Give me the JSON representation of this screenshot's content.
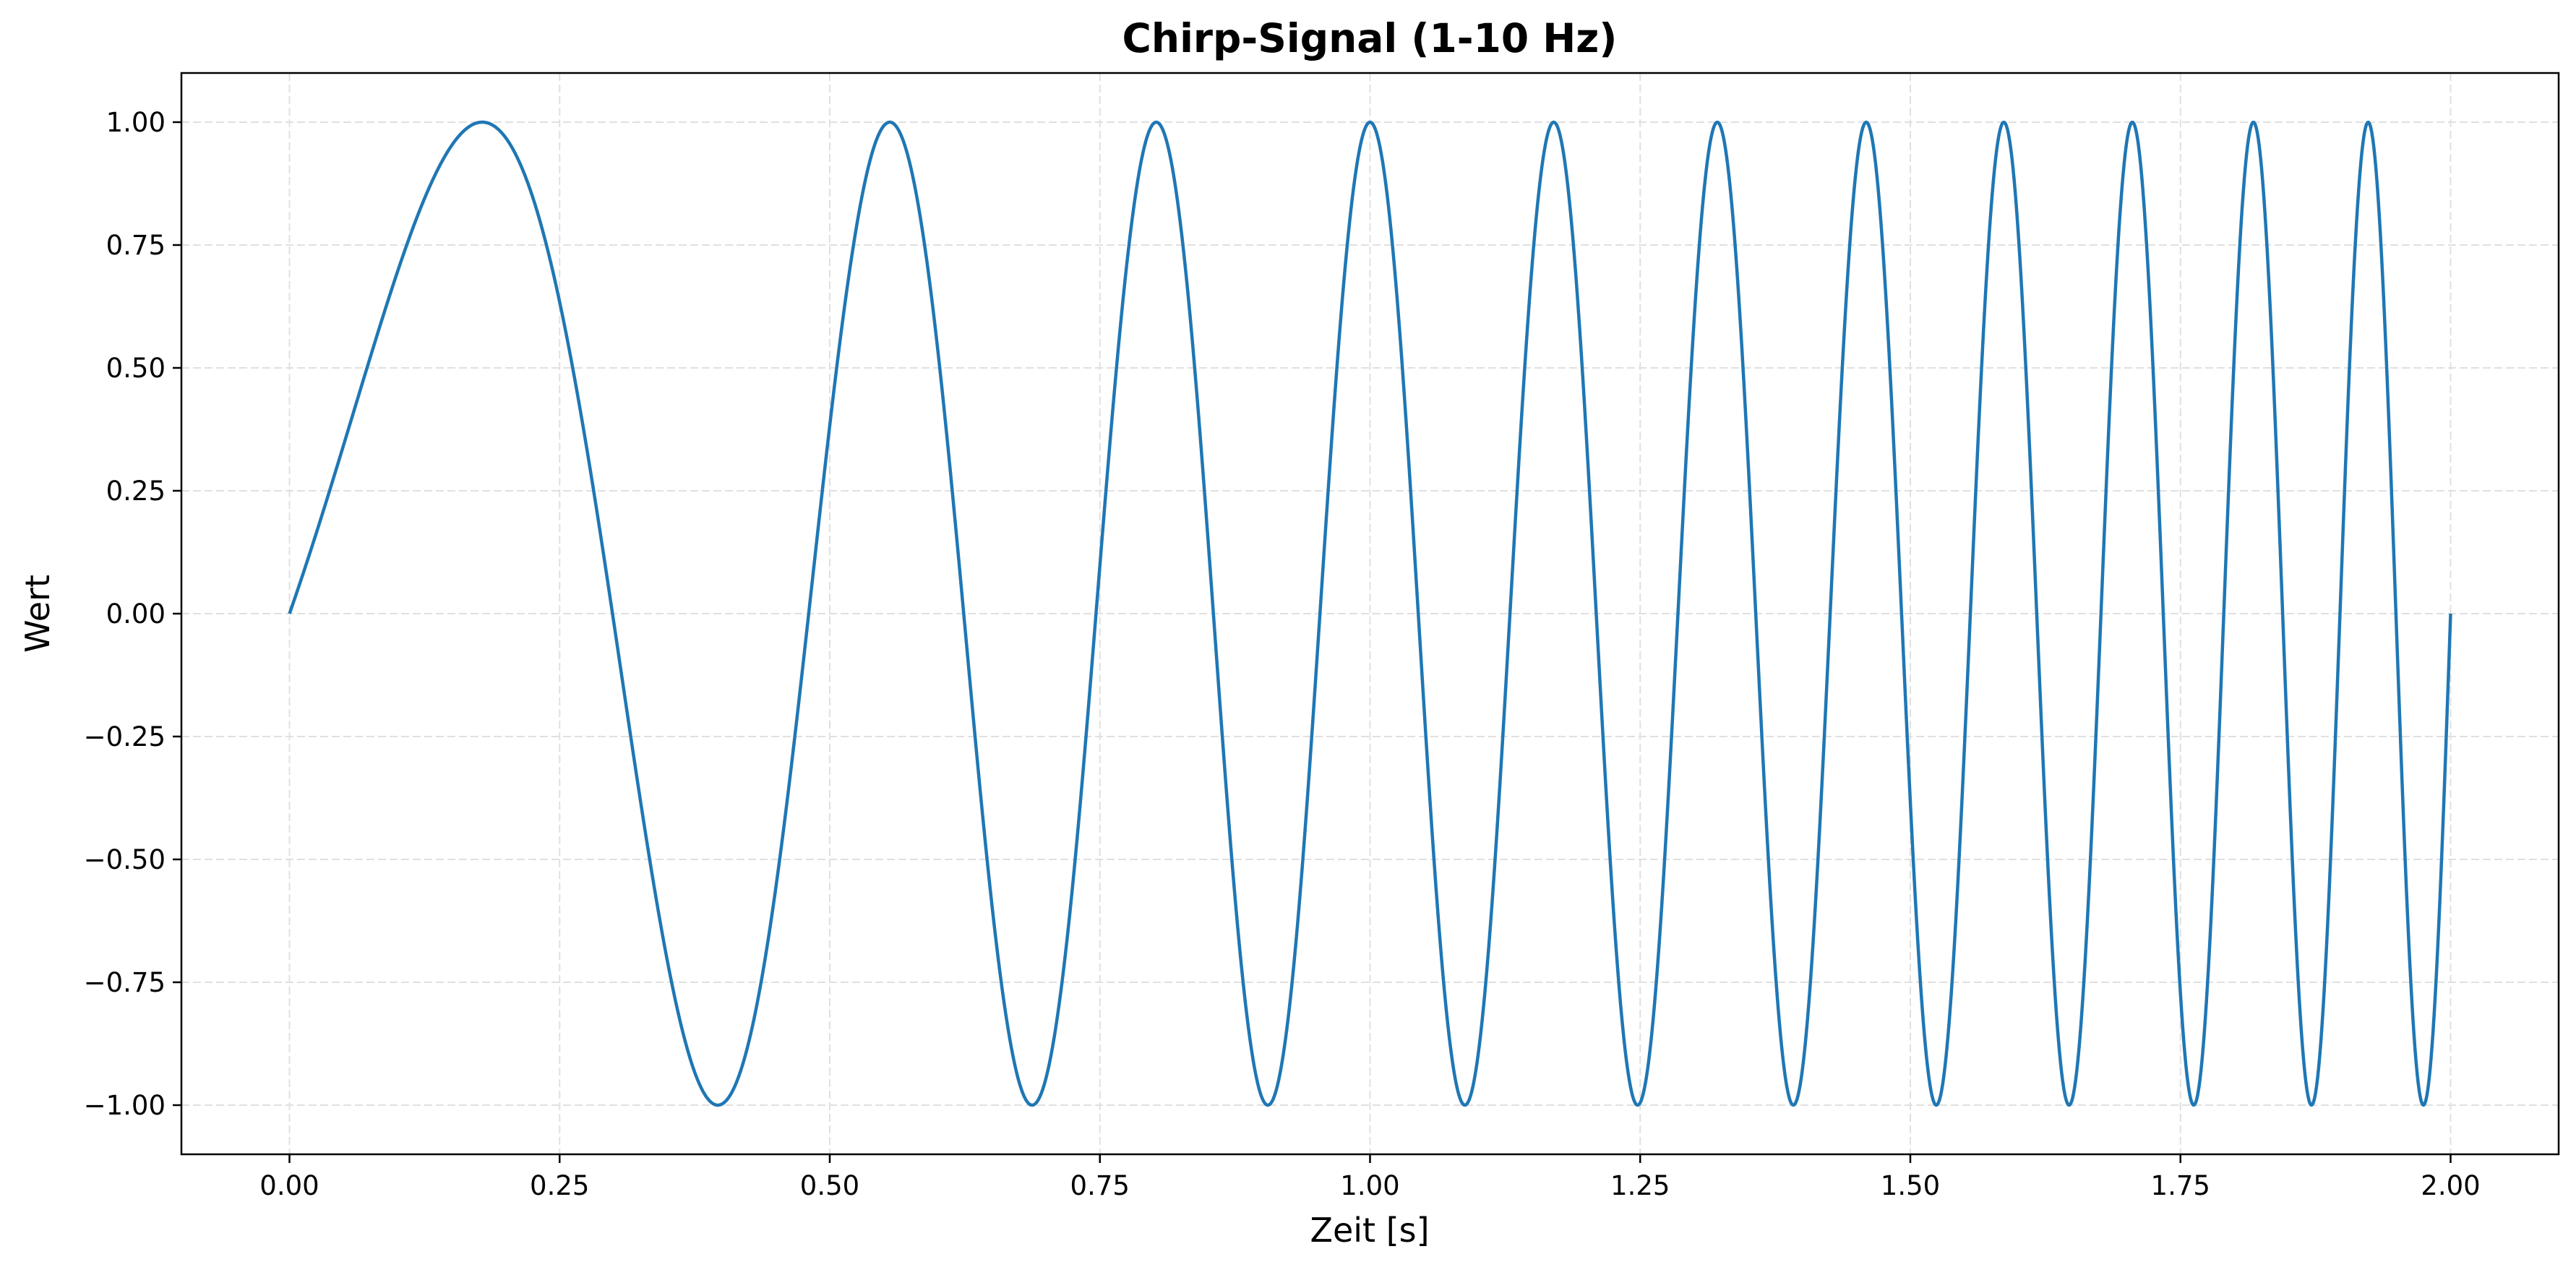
{
  "chart_data": {
    "type": "line",
    "title": "Chirp-Signal (1-10 Hz)",
    "xlabel": "Zeit [s]",
    "ylabel": "Wert",
    "xlim": [
      -0.1,
      2.1
    ],
    "ylim": [
      -1.1,
      1.1
    ],
    "x_ticks": [
      0.0,
      0.25,
      0.5,
      0.75,
      1.0,
      1.25,
      1.5,
      1.75,
      2.0
    ],
    "x_tick_labels": [
      "0.00",
      "0.25",
      "0.50",
      "0.75",
      "1.00",
      "1.25",
      "1.50",
      "1.75",
      "2.00"
    ],
    "y_ticks": [
      1.0,
      0.75,
      0.5,
      0.25,
      0.0,
      -0.25,
      -0.5,
      -0.75,
      -1.0
    ],
    "y_tick_labels": [
      "1.00",
      "0.75",
      "0.50",
      "0.25",
      "0.00",
      "−0.25",
      "−0.50",
      "−0.75",
      "−1.00"
    ],
    "grid": true,
    "legend": "none",
    "series": [
      {
        "color": "#1f77b4",
        "function": "sin(2*pi*(f0*t + (f1-f0)/(2*T)*t^2))",
        "f0": 1,
        "f1": 10,
        "T": 2,
        "x_start": 0.0,
        "x_end": 2.0,
        "samples": 2000
      }
    ]
  },
  "colors": {
    "line": "#1f77b4",
    "grid": "#e0e0e0",
    "axes": "#000000",
    "background": "#ffffff"
  }
}
